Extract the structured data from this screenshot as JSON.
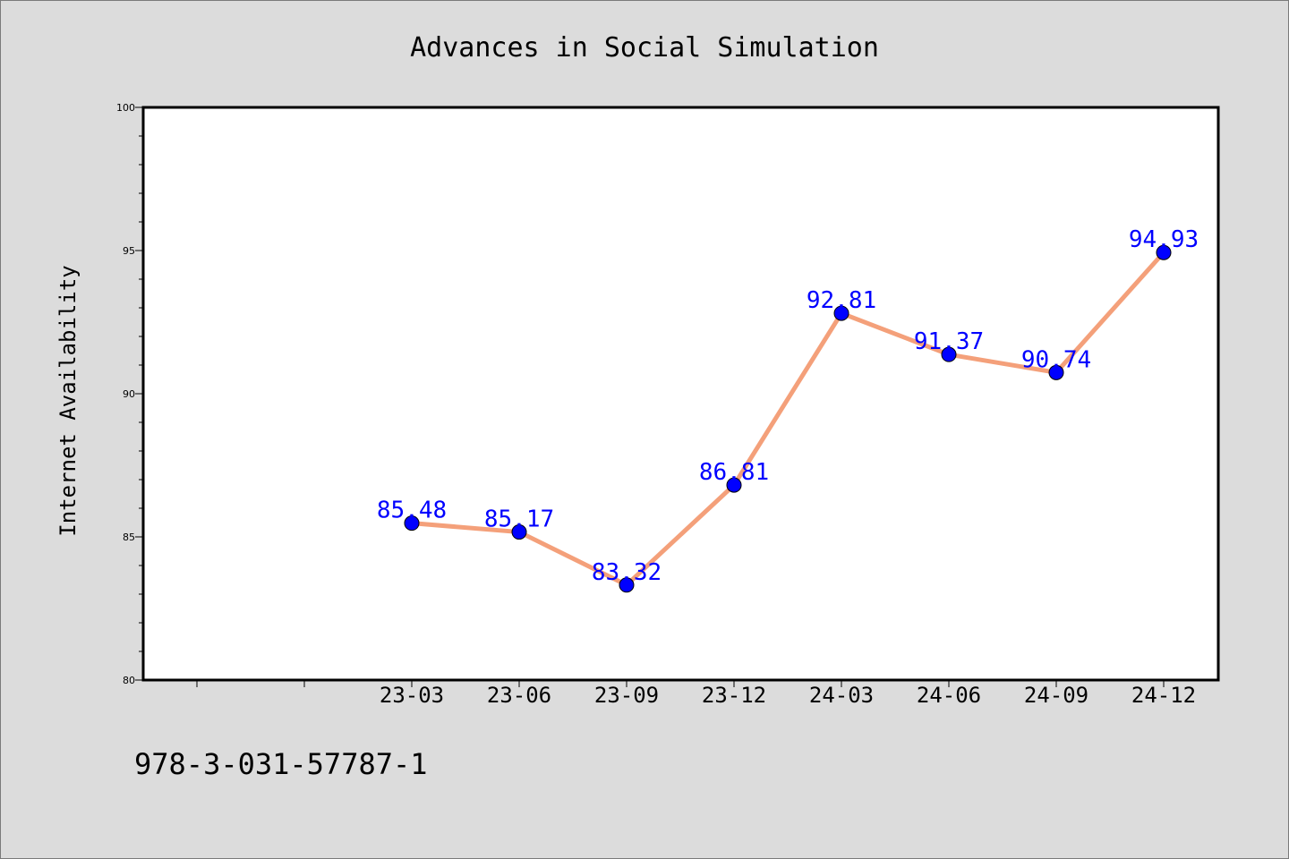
{
  "chart_data": {
    "type": "line",
    "title": "Advances in Social Simulation",
    "xlabel": "",
    "ylabel": "Internet Availability",
    "categories": [
      "23-03",
      "23-06",
      "23-09",
      "23-12",
      "24-03",
      "24-06",
      "24-09",
      "24-12"
    ],
    "values": [
      85.48,
      85.17,
      83.32,
      86.81,
      92.81,
      91.37,
      90.74,
      94.93
    ],
    "data_labels": [
      "85.48",
      "85.17",
      "83.32",
      "86.81",
      "92.81",
      "91.37",
      "90.74",
      "94.93"
    ],
    "ylim": [
      80,
      100
    ],
    "yticks": [
      "80",
      "85",
      "90",
      "95",
      "100"
    ],
    "grid": false,
    "legend": "none",
    "line_color": "#f4a07a",
    "marker_color": "#0000ff",
    "label_color": "#0000ff"
  },
  "footer": {
    "isbn": "978-3-031-57787-1"
  }
}
